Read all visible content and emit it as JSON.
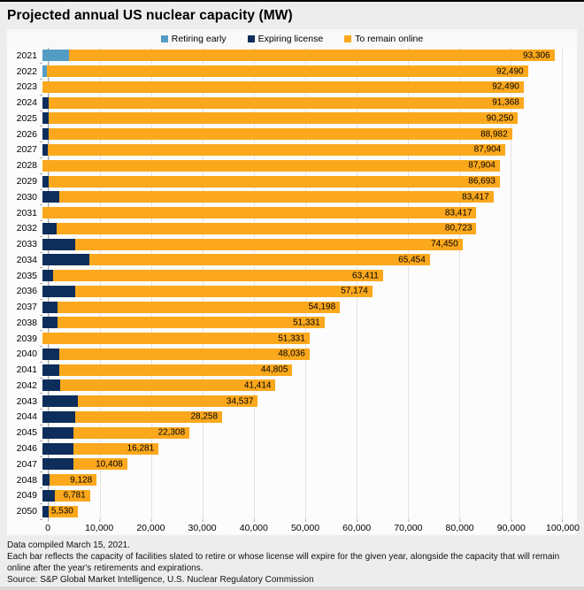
{
  "page": {
    "title": "Projected annual US nuclear capacity (MW)"
  },
  "colors": {
    "retiring_early": "#539dc5",
    "expiring_license": "#0d2d5b",
    "remain_online": "#fba81d",
    "gridline": "#e2e2e2",
    "axis": "#ababab",
    "page_background": "#ededed",
    "plot_background": "#fcfcfc",
    "top_border": "#000000"
  },
  "chart_data": {
    "type": "bar",
    "orientation": "horizontal",
    "stacked": true,
    "title": "Projected annual US nuclear capacity (MW)",
    "xlabel": "",
    "ylabel": "",
    "xlim": [
      0,
      100000
    ],
    "grid": true,
    "legend_position": "top",
    "categories": [
      2021,
      2022,
      2023,
      2024,
      2025,
      2026,
      2027,
      2028,
      2029,
      2030,
      2031,
      2032,
      2033,
      2034,
      2035,
      2036,
      2037,
      2038,
      2039,
      2040,
      2041,
      2042,
      2043,
      2044,
      2045,
      2046,
      2047,
      2048,
      2049,
      2050
    ],
    "series": [
      {
        "name": "Retiring early",
        "color_key": "retiring_early",
        "values": [
          5100,
          816,
          0,
          0,
          0,
          0,
          0,
          0,
          0,
          0,
          0,
          0,
          0,
          0,
          0,
          0,
          0,
          0,
          0,
          0,
          0,
          0,
          0,
          0,
          0,
          0,
          0,
          0,
          0,
          0
        ]
      },
      {
        "name": "Expiring license",
        "color_key": "expiring_license",
        "values": [
          0,
          0,
          0,
          1122,
          1118,
          1268,
          1078,
          0,
          1211,
          3276,
          0,
          2694,
          6273,
          8996,
          2043,
          6237,
          2976,
          2867,
          0,
          3295,
          3231,
          3391,
          6877,
          6279,
          5950,
          6027,
          5873,
          1280,
          2347,
          1251
        ]
      },
      {
        "name": "To remain online",
        "color_key": "remain_online",
        "values": [
          93306,
          92490,
          92490,
          91368,
          90250,
          88982,
          87904,
          87904,
          86693,
          83417,
          83417,
          80723,
          74450,
          65454,
          63411,
          57174,
          54198,
          51331,
          51331,
          48036,
          44805,
          41414,
          34537,
          28258,
          22308,
          16281,
          10408,
          9128,
          6781,
          5530
        ]
      }
    ],
    "bar_labels": [
      "93,306",
      "92,490",
      "92,490",
      "91,368",
      "90,250",
      "88,982",
      "87,904",
      "87,904",
      "86,693",
      "83,417",
      "83,417",
      "80,723",
      "74,450",
      "65,454",
      "63,411",
      "57,174",
      "54,198",
      "51,331",
      "51,331",
      "48,036",
      "44,805",
      "41,414",
      "34,537",
      "28,258",
      "22,308",
      "16,281",
      "10,408",
      "9,128",
      "6,781",
      "5,530"
    ],
    "x_ticks": [
      "0",
      "10,000",
      "20,000",
      "30,000",
      "40,000",
      "50,000",
      "60,000",
      "70,000",
      "80,000",
      "90,000",
      "100,000"
    ]
  },
  "footer": {
    "line1": "Data compiled March 15, 2021.",
    "line2": "Each bar reflects the capacity of facilities slated to retire or whose license will expire for the given year, alongside the capacity that will remain online after the year's retirements and expirations.",
    "source": "Source: S&P Global Market Intelligence, U.S. Nuclear Regulatory Commission"
  }
}
